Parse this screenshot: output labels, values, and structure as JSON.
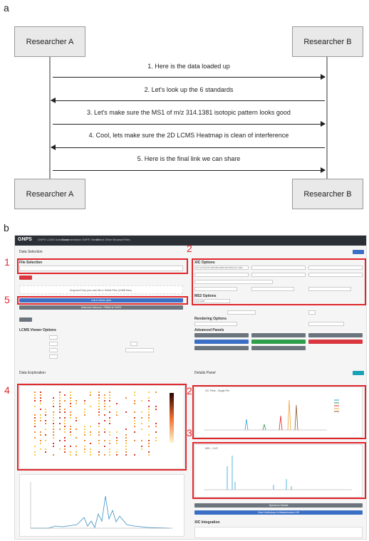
{
  "panel_a": {
    "label": "a",
    "actors": {
      "left_top": "Researcher A",
      "right_top": "Researcher B",
      "left_bottom": "Researcher A",
      "right_bottom": "Researcher B"
    },
    "messages": [
      {
        "text": "1. Here is the data loaded up",
        "dir": "right"
      },
      {
        "text": "2. Let's look up the 6 standards",
        "dir": "left"
      },
      {
        "text": "3. Let's make sure the MS1 of m/z 314.1381 isotopic pattern looks good",
        "dir": "right"
      },
      {
        "text": "4. Cool, lets make sure the 2D LCMS Heatmap is clean of interference",
        "dir": "left"
      },
      {
        "text": "5. Here is the final link we can share",
        "dir": "right"
      }
    ]
  },
  "panel_b": {
    "label": "b",
    "app": {
      "logo": "GNPS",
      "nav": [
        "GNPS LCMS Dashboard",
        "Documentation",
        "GNPS Viewer",
        "Select Other Browser/Files"
      ],
      "sections": {
        "data_selection": "Data Selection",
        "file_selection": "File Selection",
        "xic_options": "XIC Options",
        "ms2_options": "MS2 Options",
        "rendering_options": "Rendering Options",
        "advanced_panels": "Advanced Panels",
        "lcms_viewer_options": "LCMS Viewer Options",
        "data_exploration": "Data Exploration",
        "details_panel": "Details Panel",
        "xic_integration": "XIC Integration"
      },
      "drag_drop_text": "Drag and Drop your own file or Select Files (10MB Max)",
      "link_button": "Link to these plots",
      "network_button": "Molecular Network / FBMN at GNPS",
      "xic_plot_title": "XIC Plots - Single File",
      "ms1_plot_title": "MS1 - 2147",
      "xic_mz_value": "271.1278;278.1368;285.0985;306.0693;314.1381",
      "ms2_identifier_value": "314.1381",
      "spectrum_button": "Spectrum Details",
      "usi_button": "View Usi/lookup in Metabolomics USI"
    },
    "callouts": [
      {
        "num": "1",
        "target": "File Selection"
      },
      {
        "num": "2",
        "target": "XIC Options"
      },
      {
        "num": "5",
        "target": "Link to these plots"
      },
      {
        "num": "4",
        "target": "Data Exploration heatmap"
      },
      {
        "num": "2",
        "target": "XIC plot"
      },
      {
        "num": "3",
        "target": "MS1 plot"
      }
    ]
  },
  "colors": {
    "red": "#e0262b",
    "blue": "#3b6fc5",
    "gray_button": "#6c757d",
    "green": "#2e9e4b",
    "red_button": "#d9363e"
  }
}
